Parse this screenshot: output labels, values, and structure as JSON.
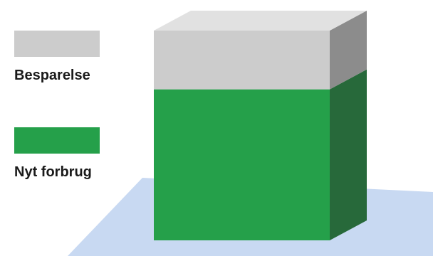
{
  "chart_data": {
    "type": "bar",
    "stacked": true,
    "three_d": true,
    "categories": [
      ""
    ],
    "series": [
      {
        "name": "Nyt forbrug",
        "values": [
          72
        ],
        "color": "#25a04a",
        "side_color": "#27693a"
      },
      {
        "name": "Besparelse",
        "values": [
          28
        ],
        "color": "#cccccc",
        "side_color": "#8c8c8c"
      }
    ],
    "top_color": "#e1e1e1",
    "floor_color": "#c8d9f2",
    "ylim": [
      0,
      100
    ],
    "legend_position": "left",
    "grid": false
  },
  "legend": {
    "items": [
      {
        "label": "Besparelse",
        "color": "#cccccc"
      },
      {
        "label": "Nyt forbrug",
        "color": "#25a04a"
      }
    ]
  }
}
